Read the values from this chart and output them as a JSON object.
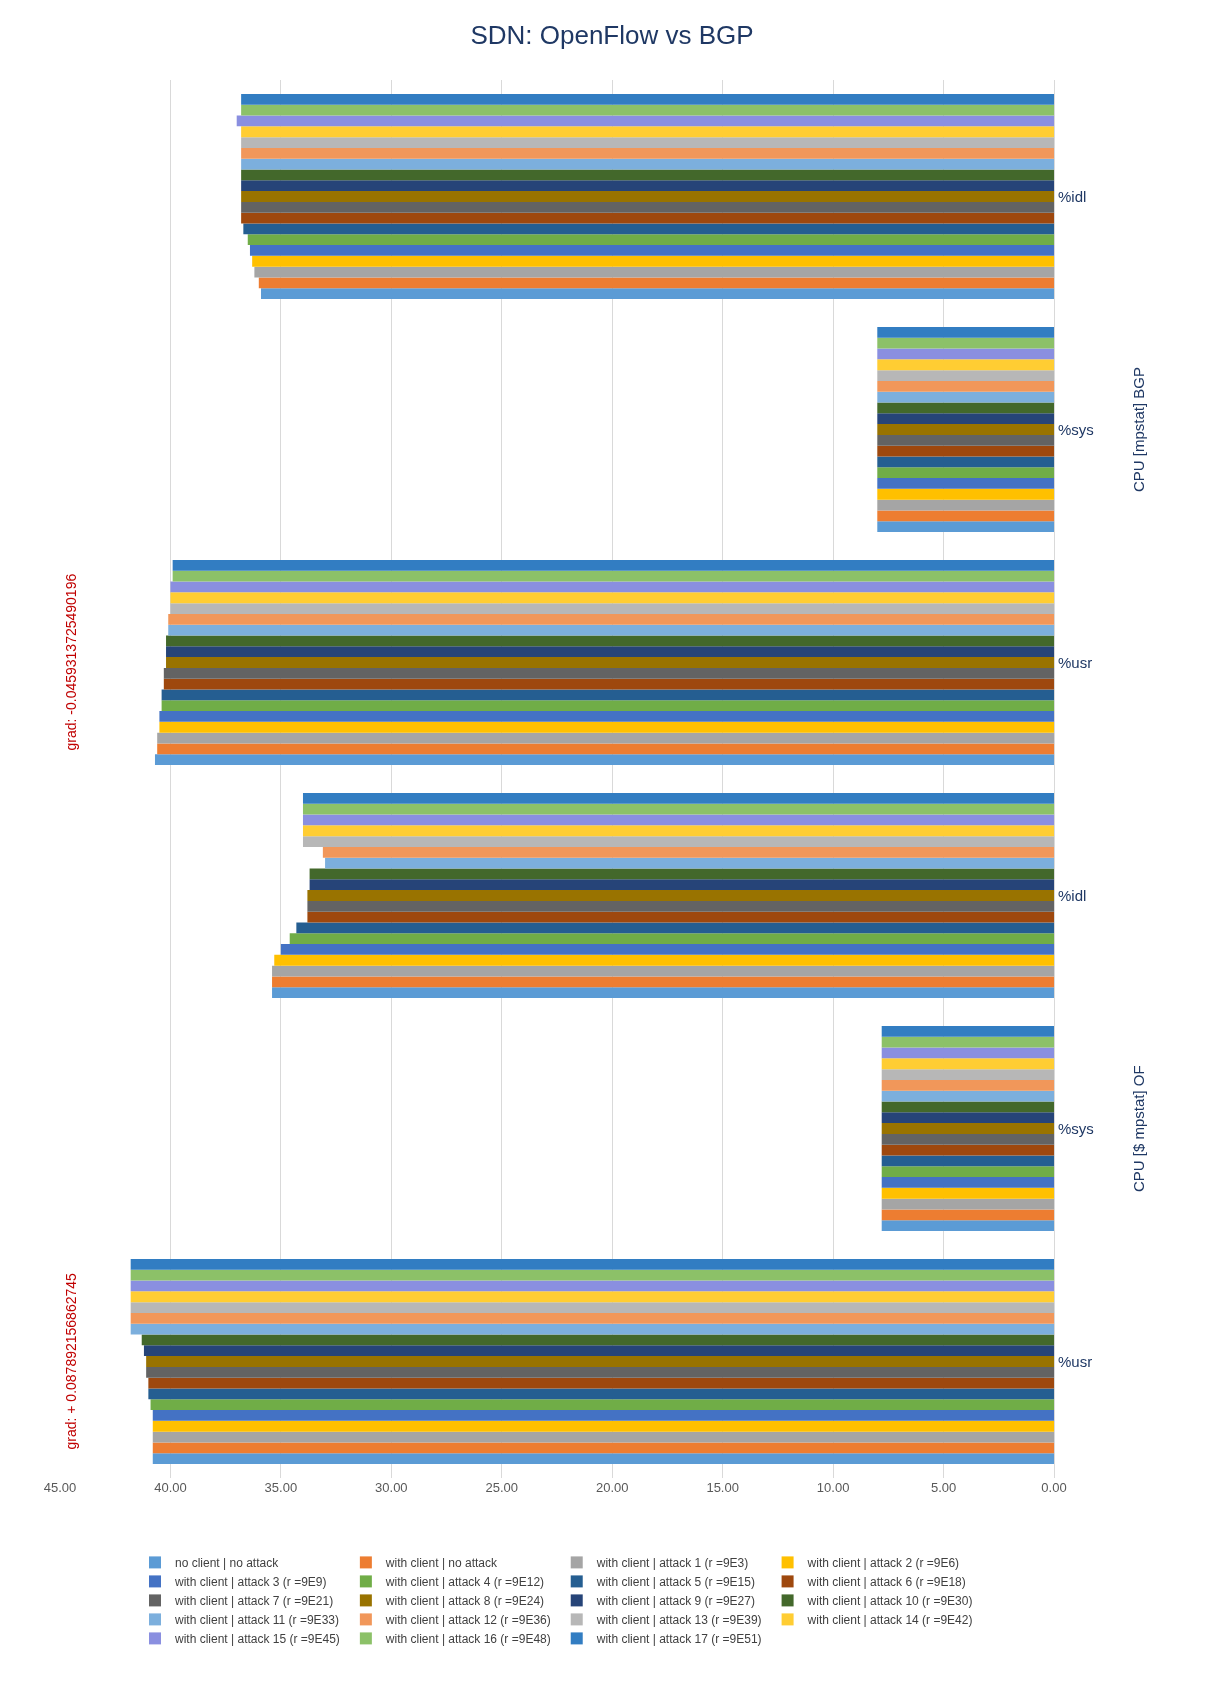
{
  "chart_data": {
    "type": "bar",
    "orientation": "horizontal",
    "title": "SDN: OpenFlow vs BGP",
    "categories": [
      "%idl",
      "%sys",
      "%usr",
      "%idl",
      "%sys",
      "%usr"
    ],
    "annotations": [
      "CPU [mpstat] BGP",
      "CPU [$ mpstat] OF",
      "grad: -0.0459313725490196",
      "grad: + 0.087892156862745"
    ],
    "xlim": [
      45,
      0
    ],
    "xticks": [
      {
        "value": 45,
        "label": "45.00"
      },
      {
        "value": 40,
        "label": "40.00"
      },
      {
        "value": 35,
        "label": "35.00"
      },
      {
        "value": 30,
        "label": "30.00"
      },
      {
        "value": 25,
        "label": "25.00"
      },
      {
        "value": 20,
        "label": "20.00"
      },
      {
        "value": 15,
        "label": "15.00"
      },
      {
        "value": 10,
        "label": "10.00"
      },
      {
        "value": 5,
        "label": "5.00"
      },
      {
        "value": 0,
        "label": "0.00"
      }
    ],
    "grid": "x",
    "legend": "bottom",
    "series": [
      {
        "name": "no client | no attack",
        "color": "#5b9bd5",
        "values": [
          35.9,
          8.0,
          40.7,
          35.4,
          7.8,
          40.8
        ]
      },
      {
        "name": "with client | no attack",
        "color": "#ed7d31",
        "values": [
          36.0,
          8.0,
          40.6,
          35.4,
          7.8,
          40.8
        ]
      },
      {
        "name": "with client | attack 1 (r =9E3)",
        "color": "#a5a5a5",
        "values": [
          36.2,
          8.0,
          40.6,
          35.4,
          7.8,
          40.8
        ]
      },
      {
        "name": "with client | attack 2 (r =9E6)",
        "color": "#ffc000",
        "values": [
          36.3,
          8.0,
          40.5,
          35.3,
          7.8,
          40.8
        ]
      },
      {
        "name": "with client | attack 3 (r =9E9)",
        "color": "#4472c4",
        "values": [
          36.4,
          8.0,
          40.5,
          35.0,
          7.8,
          40.8
        ]
      },
      {
        "name": "with client | attack 4 (r =9E12)",
        "color": "#70ad47",
        "values": [
          36.5,
          8.0,
          40.4,
          34.6,
          7.8,
          40.9
        ]
      },
      {
        "name": "with client | attack 5 (r =9E15)",
        "color": "#255e91",
        "values": [
          36.7,
          8.0,
          40.4,
          34.3,
          7.8,
          41.0
        ]
      },
      {
        "name": "with client | attack 6 (r =9E18)",
        "color": "#9e480e",
        "values": [
          36.8,
          8.0,
          40.3,
          33.8,
          7.8,
          41.0
        ]
      },
      {
        "name": "with client | attack 7 (r =9E21)",
        "color": "#636363",
        "values": [
          36.8,
          8.0,
          40.3,
          33.8,
          7.8,
          41.1
        ]
      },
      {
        "name": "with client | attack 8 (r =9E24)",
        "color": "#997300",
        "values": [
          36.8,
          8.0,
          40.2,
          33.8,
          7.8,
          41.1
        ]
      },
      {
        "name": "with client | attack 9 (r =9E27)",
        "color": "#264478",
        "values": [
          36.8,
          8.0,
          40.2,
          33.7,
          7.8,
          41.2
        ]
      },
      {
        "name": "with client | attack 10 (r =9E30)",
        "color": "#43682b",
        "values": [
          36.8,
          8.0,
          40.2,
          33.7,
          7.8,
          41.3
        ]
      },
      {
        "name": "with client | attack 11 (r =9E33)",
        "color": "#7cafdd",
        "values": [
          36.8,
          8.0,
          40.1,
          33.0,
          7.8,
          41.8
        ]
      },
      {
        "name": "with client | attack 12 (r =9E36)",
        "color": "#f1975a",
        "values": [
          36.8,
          8.0,
          40.1,
          33.1,
          7.8,
          41.8
        ]
      },
      {
        "name": "with client | attack 13 (r =9E39)",
        "color": "#b7b7b7",
        "values": [
          36.8,
          8.0,
          40.0,
          34.0,
          7.8,
          41.8
        ]
      },
      {
        "name": "with client | attack 14 (r =9E42)",
        "color": "#ffcd33",
        "values": [
          36.8,
          8.0,
          40.0,
          34.0,
          7.8,
          41.8
        ]
      },
      {
        "name": "with client | attack 15 (r =9E45)",
        "color": "#8a8fe0",
        "values": [
          37.0,
          8.0,
          40.0,
          34.0,
          7.8,
          41.8
        ]
      },
      {
        "name": "with client | attack 16 (r =9E48)",
        "color": "#8cc168",
        "values": [
          36.8,
          8.0,
          39.9,
          34.0,
          7.8,
          41.8
        ]
      },
      {
        "name": "with client | attack 17 (r =9E51)",
        "color": "#327dc2",
        "values": [
          36.8,
          8.0,
          39.9,
          34.0,
          7.8,
          41.8
        ]
      }
    ]
  }
}
